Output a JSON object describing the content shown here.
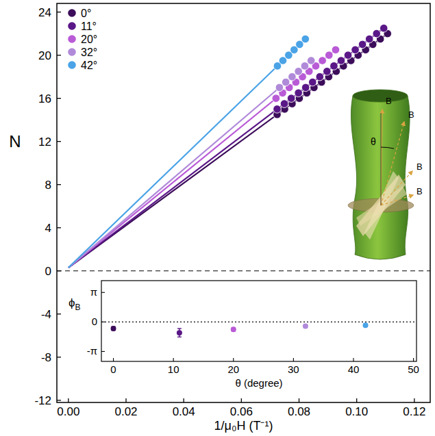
{
  "chart_data": [
    {
      "type": "scatter",
      "xlabel": "1/μ₀H (T⁻¹)",
      "ylabel": "N",
      "xlim": [
        -0.004,
        0.1255
      ],
      "ylim": [
        -12.2,
        24.8
      ],
      "xticks": [
        {
          "value": 0,
          "label": "0.00"
        },
        {
          "value": 0.02,
          "label": "0.02"
        },
        {
          "value": 0.04,
          "label": "0.04"
        },
        {
          "value": 0.06,
          "label": "0.06"
        },
        {
          "value": 0.08,
          "label": "0.08"
        },
        {
          "value": 0.1,
          "label": "0.10"
        },
        {
          "value": 0.12,
          "label": "0.12"
        }
      ],
      "yticks": [
        -12,
        -8,
        -4,
        0,
        4,
        8,
        12,
        16,
        20,
        24
      ],
      "grid": false,
      "legend": "top-left",
      "marker": "circle",
      "reference_line": {
        "y": 0,
        "line_style": "dashed"
      },
      "series": [
        {
          "name": "0°",
          "color": "#3c0d5a",
          "x": [
            0.0724,
            0.075,
            0.0776,
            0.0801,
            0.0827,
            0.0852,
            0.0878,
            0.0903,
            0.0929,
            0.0954,
            0.098,
            0.1005,
            0.1031,
            0.1056,
            0.1082,
            0.1107
          ],
          "values": [
            14.5,
            15,
            15.5,
            16,
            16.5,
            17,
            17.5,
            18,
            18.5,
            19,
            19.5,
            20,
            20.5,
            21,
            21.5,
            22
          ],
          "fit": {
            "x": [
              0,
              0.1107
            ],
            "values": [
              0.3,
              22
            ]
          }
        },
        {
          "name": "11°",
          "color": "#5a1787",
          "x": [
            0.0724,
            0.0749,
            0.0773,
            0.0798,
            0.0823,
            0.0847,
            0.0872,
            0.0897,
            0.0921,
            0.0946,
            0.097,
            0.0995,
            0.102,
            0.1044,
            0.1069,
            0.1094
          ],
          "values": [
            15,
            15.5,
            16,
            16.5,
            17,
            17.5,
            18,
            18.5,
            19,
            19.5,
            20,
            20.5,
            21,
            21.5,
            22,
            22.5
          ],
          "fit": {
            "x": [
              0,
              0.1094
            ],
            "values": [
              0.3,
              22.5
            ]
          }
        },
        {
          "name": "20°",
          "color": "#b95ad6",
          "x": [
            0.072,
            0.0743,
            0.0766,
            0.0789,
            0.0812,
            0.0835,
            0.0858,
            0.0881,
            0.0904,
            0.0927
          ],
          "values": [
            16,
            16.5,
            17,
            17.5,
            18,
            18.5,
            19,
            19.5,
            20,
            20.5
          ],
          "fit": {
            "x": [
              0,
              0.0927
            ],
            "values": [
              0.3,
              20.5
            ]
          }
        },
        {
          "name": "32°",
          "color": "#b08ad9",
          "x": [
            0.0732,
            0.0754,
            0.0776,
            0.0798,
            0.082,
            0.0842
          ],
          "values": [
            17,
            17.5,
            18,
            18.5,
            19,
            19.5
          ],
          "fit": {
            "x": [
              0,
              0.0842
            ],
            "values": [
              0.3,
              19.5
            ]
          }
        },
        {
          "name": "42°",
          "color": "#4aa3e6",
          "x": [
            0.0725,
            0.0744,
            0.0764,
            0.0783,
            0.0802,
            0.0822
          ],
          "values": [
            19,
            19.5,
            20,
            20.5,
            21,
            21.5
          ],
          "fit": {
            "x": [
              0,
              0.0822
            ],
            "values": [
              0.3,
              21.5
            ]
          }
        }
      ]
    },
    {
      "type": "scatter",
      "xlabel": "θ (degree)",
      "ylabel": "ϕ",
      "ylabel_sub": "B",
      "xlim": [
        -2,
        50.5
      ],
      "ylim": [
        -4.2,
        4.4
      ],
      "xticks": [
        0,
        10,
        20,
        30,
        40,
        50
      ],
      "yticks": [
        {
          "value": -3.1416,
          "label": "-π"
        },
        {
          "value": 0,
          "label": "0"
        },
        {
          "value": 3.1416,
          "label": "π"
        }
      ],
      "marker": "circle",
      "reference_line": {
        "y": 0,
        "line_style": "dotted"
      },
      "x": [
        0,
        11,
        20,
        32,
        42
      ],
      "values": [
        -0.7,
        -1.15,
        -0.8,
        -0.45,
        -0.35
      ],
      "errors": [
        0.2,
        0.45,
        0.2,
        0.15,
        0.15
      ],
      "colors": [
        "#3c0d5a",
        "#5a1787",
        "#b95ad6",
        "#b08ad9",
        "#4aa3e6"
      ]
    }
  ],
  "illustration": {
    "field_labels": [
      "B",
      "B",
      "B",
      "B"
    ],
    "angle_label": "θ"
  }
}
